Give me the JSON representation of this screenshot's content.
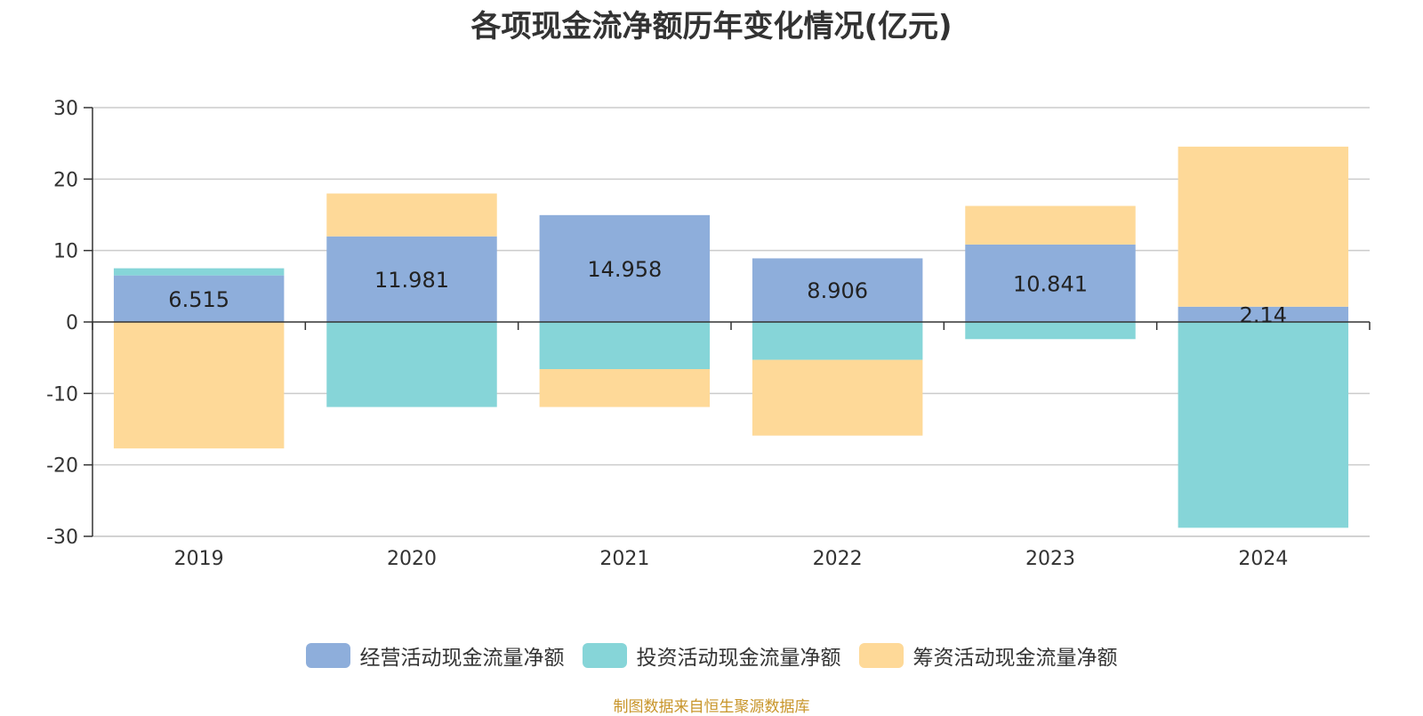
{
  "title": "各项现金流净额历年变化情况(亿元)",
  "source": "制图数据来自恒生聚源数据库",
  "chart_data": {
    "type": "bar",
    "stacked": true,
    "categories": [
      "2019",
      "2020",
      "2021",
      "2022",
      "2023",
      "2024"
    ],
    "ylim": [
      -30,
      30
    ],
    "yticks": [
      "30",
      "20",
      "10",
      "0",
      "-10",
      "-20",
      "-30"
    ],
    "grid": true,
    "legend_position": "bottom",
    "series": [
      {
        "name": "经营活动现金流量净额",
        "color": "#8eaedb",
        "values": [
          6.515,
          11.981,
          14.958,
          8.906,
          10.841,
          2.14
        ],
        "labels": [
          "6.515",
          "11.981",
          "14.958",
          "8.906",
          "10.841",
          "2.14"
        ]
      },
      {
        "name": "投资活动现金流量净额",
        "color": "#86d5d8",
        "values": [
          1.0,
          -11.9,
          -6.6,
          -5.3,
          -2.4,
          -28.8
        ]
      },
      {
        "name": "筹资活动现金流量净额",
        "color": "#fed998",
        "values": [
          -17.7,
          6.0,
          -5.3,
          -10.6,
          5.4,
          22.4
        ]
      }
    ]
  }
}
